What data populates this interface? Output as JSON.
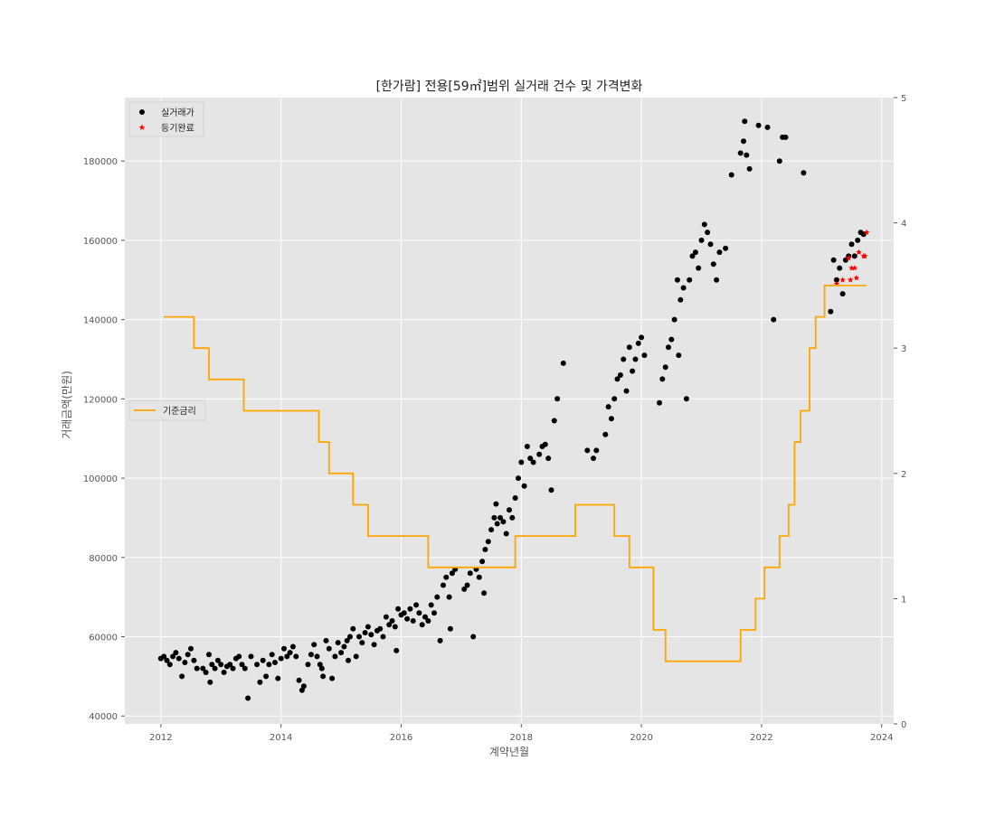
{
  "chart_data": {
    "type": "scatter",
    "title": "[한가람] 전용[59㎡]범위 실거래 건수 및 가격변화",
    "xlabel": "계약년월",
    "ylabel": "거래금액(만원)",
    "xlim": [
      2011.4,
      2024.2
    ],
    "ylim": [
      38000,
      196000
    ],
    "y2lim": [
      0,
      5
    ],
    "grid": true,
    "x_ticks": [
      2012,
      2014,
      2016,
      2018,
      2020,
      2022,
      2024
    ],
    "y_ticks": [
      40000,
      60000,
      80000,
      100000,
      120000,
      140000,
      160000,
      180000
    ],
    "y2_ticks": [
      0,
      1,
      2,
      3,
      4,
      5
    ],
    "legend_top": {
      "placement": "top-left",
      "entries": [
        "실거래가",
        "등기완료"
      ]
    },
    "legend_mid": {
      "placement": "center-left",
      "entries": [
        "기준금리"
      ]
    },
    "series": [
      {
        "name": "실거래가",
        "kind": "scatter",
        "color": "#000000",
        "points": [
          [
            2012.0,
            54500
          ],
          [
            2012.05,
            55000
          ],
          [
            2012.1,
            54000
          ],
          [
            2012.15,
            53000
          ],
          [
            2012.2,
            55000
          ],
          [
            2012.25,
            56000
          ],
          [
            2012.3,
            54500
          ],
          [
            2012.35,
            50000
          ],
          [
            2012.4,
            53500
          ],
          [
            2012.45,
            55500
          ],
          [
            2012.5,
            57000
          ],
          [
            2012.55,
            54000
          ],
          [
            2012.6,
            52000
          ],
          [
            2012.7,
            52000
          ],
          [
            2012.75,
            51000
          ],
          [
            2012.8,
            55500
          ],
          [
            2012.82,
            48500
          ],
          [
            2012.85,
            53000
          ],
          [
            2012.9,
            52000
          ],
          [
            2012.95,
            54000
          ],
          [
            2013.0,
            53000
          ],
          [
            2013.05,
            51000
          ],
          [
            2013.1,
            52500
          ],
          [
            2013.15,
            53000
          ],
          [
            2013.2,
            52000
          ],
          [
            2013.25,
            54500
          ],
          [
            2013.3,
            55000
          ],
          [
            2013.35,
            53000
          ],
          [
            2013.4,
            52000
          ],
          [
            2013.45,
            44500
          ],
          [
            2013.5,
            55000
          ],
          [
            2013.6,
            53000
          ],
          [
            2013.65,
            48500
          ],
          [
            2013.7,
            54000
          ],
          [
            2013.75,
            50000
          ],
          [
            2013.8,
            53000
          ],
          [
            2013.85,
            55500
          ],
          [
            2013.9,
            53500
          ],
          [
            2013.95,
            49500
          ],
          [
            2014.0,
            54500
          ],
          [
            2014.05,
            57000
          ],
          [
            2014.1,
            55000
          ],
          [
            2014.15,
            56000
          ],
          [
            2014.2,
            57500
          ],
          [
            2014.25,
            55000
          ],
          [
            2014.3,
            49000
          ],
          [
            2014.35,
            46500
          ],
          [
            2014.38,
            47500
          ],
          [
            2014.45,
            53000
          ],
          [
            2014.5,
            55500
          ],
          [
            2014.55,
            58000
          ],
          [
            2014.6,
            55000
          ],
          [
            2014.65,
            53000
          ],
          [
            2014.68,
            52000
          ],
          [
            2014.7,
            50000
          ],
          [
            2014.75,
            59000
          ],
          [
            2014.8,
            57000
          ],
          [
            2014.85,
            49500
          ],
          [
            2014.9,
            55000
          ],
          [
            2014.95,
            58500
          ],
          [
            2015.0,
            56000
          ],
          [
            2015.05,
            57500
          ],
          [
            2015.1,
            59000
          ],
          [
            2015.12,
            54000
          ],
          [
            2015.15,
            60000
          ],
          [
            2015.2,
            62000
          ],
          [
            2015.25,
            55000
          ],
          [
            2015.3,
            60000
          ],
          [
            2015.35,
            58500
          ],
          [
            2015.4,
            61000
          ],
          [
            2015.45,
            62500
          ],
          [
            2015.5,
            60500
          ],
          [
            2015.55,
            58000
          ],
          [
            2015.6,
            61500
          ],
          [
            2015.65,
            62000
          ],
          [
            2015.7,
            60000
          ],
          [
            2015.75,
            65000
          ],
          [
            2015.8,
            63000
          ],
          [
            2015.85,
            64000
          ],
          [
            2015.9,
            62500
          ],
          [
            2015.95,
            67000
          ],
          [
            2015.92,
            56500
          ],
          [
            2016.0,
            65500
          ],
          [
            2016.05,
            66000
          ],
          [
            2016.1,
            64500
          ],
          [
            2016.15,
            67000
          ],
          [
            2016.2,
            64000
          ],
          [
            2016.25,
            68000
          ],
          [
            2016.3,
            66000
          ],
          [
            2016.35,
            63000
          ],
          [
            2016.4,
            65000
          ],
          [
            2016.45,
            64000
          ],
          [
            2016.5,
            68000
          ],
          [
            2016.55,
            66000
          ],
          [
            2016.6,
            70000
          ],
          [
            2016.65,
            59000
          ],
          [
            2016.7,
            73000
          ],
          [
            2016.75,
            75000
          ],
          [
            2016.8,
            70000
          ],
          [
            2016.82,
            62000
          ],
          [
            2016.85,
            76000
          ],
          [
            2016.9,
            77000
          ],
          [
            2017.05,
            72000
          ],
          [
            2017.1,
            73000
          ],
          [
            2017.15,
            76000
          ],
          [
            2017.2,
            60000
          ],
          [
            2017.25,
            77000
          ],
          [
            2017.3,
            75000
          ],
          [
            2017.35,
            79000
          ],
          [
            2017.38,
            71000
          ],
          [
            2017.4,
            82000
          ],
          [
            2017.45,
            84000
          ],
          [
            2017.5,
            87000
          ],
          [
            2017.55,
            90000
          ],
          [
            2017.58,
            93500
          ],
          [
            2017.6,
            88500
          ],
          [
            2017.65,
            90000
          ],
          [
            2017.7,
            89000
          ],
          [
            2017.75,
            86000
          ],
          [
            2017.8,
            92000
          ],
          [
            2017.85,
            90000
          ],
          [
            2017.9,
            95000
          ],
          [
            2017.95,
            100000
          ],
          [
            2018.0,
            104000
          ],
          [
            2018.05,
            98000
          ],
          [
            2018.1,
            108000
          ],
          [
            2018.15,
            105000
          ],
          [
            2018.2,
            104000
          ],
          [
            2018.3,
            106000
          ],
          [
            2018.35,
            108000
          ],
          [
            2018.4,
            108500
          ],
          [
            2018.45,
            105000
          ],
          [
            2018.5,
            97000
          ],
          [
            2018.55,
            114500
          ],
          [
            2018.6,
            120000
          ],
          [
            2018.7,
            129000
          ],
          [
            2019.1,
            107000
          ],
          [
            2019.2,
            105000
          ],
          [
            2019.25,
            107000
          ],
          [
            2019.4,
            111000
          ],
          [
            2019.45,
            118000
          ],
          [
            2019.5,
            115000
          ],
          [
            2019.55,
            120000
          ],
          [
            2019.6,
            125000
          ],
          [
            2019.65,
            126000
          ],
          [
            2019.7,
            130000
          ],
          [
            2019.75,
            122000
          ],
          [
            2019.8,
            133000
          ],
          [
            2019.85,
            127000
          ],
          [
            2019.9,
            130000
          ],
          [
            2019.95,
            134000
          ],
          [
            2020.0,
            135500
          ],
          [
            2020.05,
            131000
          ],
          [
            2020.3,
            119000
          ],
          [
            2020.35,
            125000
          ],
          [
            2020.4,
            128000
          ],
          [
            2020.45,
            133000
          ],
          [
            2020.5,
            135000
          ],
          [
            2020.55,
            140000
          ],
          [
            2020.6,
            150000
          ],
          [
            2020.62,
            131000
          ],
          [
            2020.65,
            145000
          ],
          [
            2020.7,
            148000
          ],
          [
            2020.75,
            120000
          ],
          [
            2020.8,
            150000
          ],
          [
            2020.85,
            156000
          ],
          [
            2020.9,
            157000
          ],
          [
            2020.95,
            153000
          ],
          [
            2021.0,
            160000
          ],
          [
            2021.05,
            164000
          ],
          [
            2021.1,
            162000
          ],
          [
            2021.15,
            159000
          ],
          [
            2021.2,
            154000
          ],
          [
            2021.25,
            150000
          ],
          [
            2021.3,
            157000
          ],
          [
            2021.4,
            158000
          ],
          [
            2021.5,
            176500
          ],
          [
            2021.65,
            182000
          ],
          [
            2021.7,
            185000
          ],
          [
            2021.72,
            190000
          ],
          [
            2021.75,
            181500
          ],
          [
            2021.8,
            178000
          ],
          [
            2021.95,
            189000
          ],
          [
            2022.1,
            188500
          ],
          [
            2022.2,
            140000
          ],
          [
            2022.3,
            180000
          ],
          [
            2022.35,
            186000
          ],
          [
            2022.4,
            186000
          ],
          [
            2022.7,
            177000
          ],
          [
            2023.15,
            142000
          ],
          [
            2023.2,
            155000
          ],
          [
            2023.25,
            150000
          ],
          [
            2023.3,
            153000
          ],
          [
            2023.35,
            146500
          ],
          [
            2023.4,
            155000
          ],
          [
            2023.45,
            156000
          ],
          [
            2023.5,
            159000
          ],
          [
            2023.55,
            156000
          ],
          [
            2023.6,
            160000
          ],
          [
            2023.65,
            162000
          ],
          [
            2023.7,
            161500
          ]
        ]
      },
      {
        "name": "등기완료",
        "kind": "scatter",
        "color": "#ff0000",
        "points": [
          [
            2023.25,
            149000
          ],
          [
            2023.35,
            150000
          ],
          [
            2023.45,
            155500
          ],
          [
            2023.48,
            150000
          ],
          [
            2023.5,
            153000
          ],
          [
            2023.55,
            153000
          ],
          [
            2023.58,
            150500
          ],
          [
            2023.62,
            157000
          ],
          [
            2023.7,
            156000
          ],
          [
            2023.72,
            156000
          ],
          [
            2023.75,
            162000
          ]
        ]
      },
      {
        "name": "기준금리",
        "kind": "step",
        "color": "#ffa500",
        "axis": "right",
        "points": [
          [
            2012.05,
            3.25
          ],
          [
            2012.55,
            3.25
          ],
          [
            2012.55,
            3.0
          ],
          [
            2012.8,
            3.0
          ],
          [
            2012.8,
            2.75
          ],
          [
            2013.38,
            2.75
          ],
          [
            2013.38,
            2.5
          ],
          [
            2014.63,
            2.5
          ],
          [
            2014.63,
            2.25
          ],
          [
            2014.8,
            2.25
          ],
          [
            2014.8,
            2.0
          ],
          [
            2015.2,
            2.0
          ],
          [
            2015.2,
            1.75
          ],
          [
            2015.45,
            1.75
          ],
          [
            2015.45,
            1.5
          ],
          [
            2016.45,
            1.5
          ],
          [
            2016.45,
            1.25
          ],
          [
            2017.9,
            1.25
          ],
          [
            2017.9,
            1.5
          ],
          [
            2018.9,
            1.5
          ],
          [
            2018.9,
            1.75
          ],
          [
            2019.55,
            1.75
          ],
          [
            2019.55,
            1.5
          ],
          [
            2019.8,
            1.5
          ],
          [
            2019.8,
            1.25
          ],
          [
            2020.2,
            1.25
          ],
          [
            2020.2,
            0.75
          ],
          [
            2020.4,
            0.75
          ],
          [
            2020.4,
            0.5
          ],
          [
            2021.65,
            0.5
          ],
          [
            2021.65,
            0.75
          ],
          [
            2021.9,
            0.75
          ],
          [
            2021.9,
            1.0
          ],
          [
            2022.05,
            1.0
          ],
          [
            2022.05,
            1.25
          ],
          [
            2022.3,
            1.25
          ],
          [
            2022.3,
            1.5
          ],
          [
            2022.45,
            1.5
          ],
          [
            2022.45,
            1.75
          ],
          [
            2022.55,
            1.75
          ],
          [
            2022.55,
            2.25
          ],
          [
            2022.65,
            2.25
          ],
          [
            2022.65,
            2.5
          ],
          [
            2022.8,
            2.5
          ],
          [
            2022.8,
            3.0
          ],
          [
            2022.9,
            3.0
          ],
          [
            2022.9,
            3.25
          ],
          [
            2023.05,
            3.25
          ],
          [
            2023.05,
            3.5
          ],
          [
            2023.75,
            3.5
          ]
        ]
      }
    ]
  }
}
